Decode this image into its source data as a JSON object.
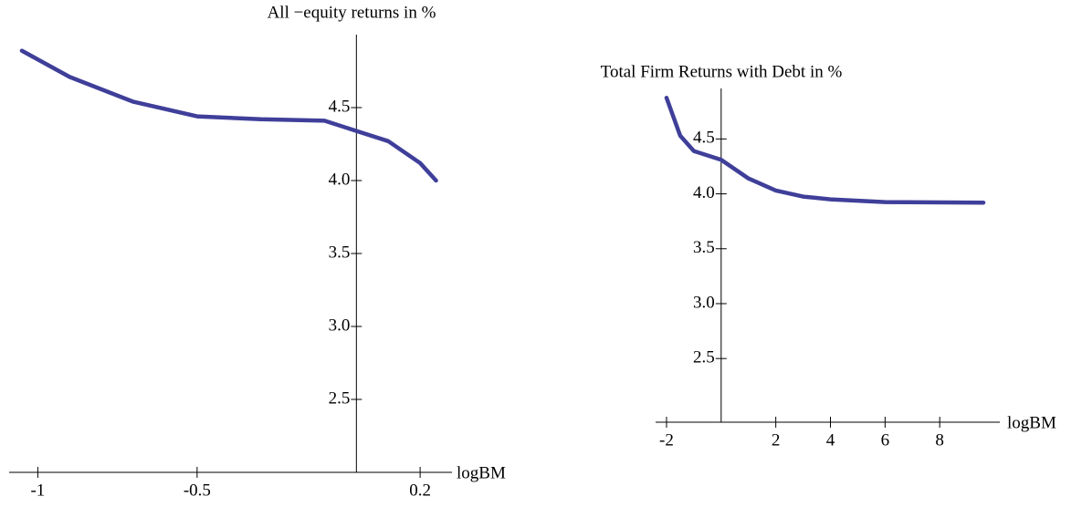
{
  "chart_data": [
    {
      "type": "line",
      "title": "All −equity returns in %",
      "x_label": "logBM",
      "x": [
        -1.05,
        -0.9,
        -0.7,
        -0.5,
        -0.3,
        -0.1,
        0,
        0.1,
        0.2,
        0.25
      ],
      "series": [
        {
          "color": "#3f3f9a",
          "values": [
            4.89,
            4.71,
            4.54,
            4.44,
            4.42,
            4.41,
            4.34,
            4.27,
            4.12,
            4.0
          ]
        }
      ],
      "xlim": [
        -1.09,
        0.3
      ],
      "ylim": [
        2.0,
        5.0
      ],
      "xticks": [
        -1,
        -0.5,
        0.2
      ],
      "yticks": [
        {
          "value": 2.5,
          "label": "2.5"
        },
        {
          "value": 3.0,
          "label": "3.0"
        },
        {
          "value": 3.5,
          "label": "3.5"
        },
        {
          "value": 4.0,
          "label": "4.0"
        },
        {
          "value": 4.5,
          "label": "4.5"
        }
      ]
    },
    {
      "type": "line",
      "title": "Total Firm Returns with Debt in %",
      "x_label": "logBM",
      "x": [
        -2,
        -1.5,
        -1,
        0,
        1,
        2,
        3,
        4,
        6,
        9.6
      ],
      "series": [
        {
          "color": "#3f3f9a",
          "values": [
            4.875,
            4.53,
            4.39,
            4.31,
            4.14,
            4.03,
            3.975,
            3.95,
            3.925,
            3.92
          ]
        }
      ],
      "xlim": [
        -2.4,
        10.2
      ],
      "ylim": [
        1.92,
        4.96
      ],
      "xticks": [
        -2,
        2,
        4,
        6,
        8
      ],
      "yticks": [
        {
          "value": 2.5,
          "label": "2.5"
        },
        {
          "value": 3.0,
          "label": "3.0"
        },
        {
          "value": 3.5,
          "label": "3.5"
        },
        {
          "value": 4.0,
          "label": "4.0"
        },
        {
          "value": 4.5,
          "label": "4.5"
        }
      ]
    }
  ]
}
